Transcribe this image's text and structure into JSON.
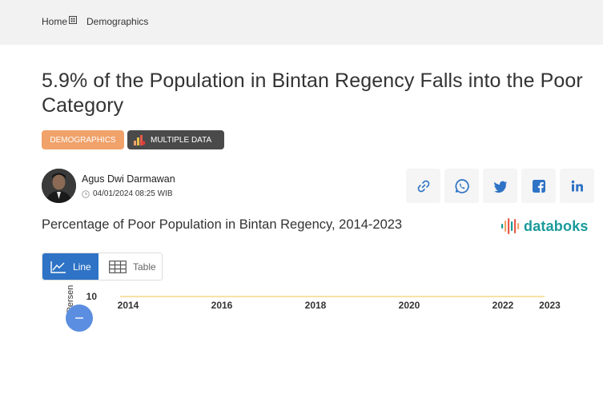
{
  "breadcrumb": {
    "home": "Home",
    "current": "Demographics"
  },
  "article": {
    "title": "5.9% of the Population in Bintan Regency Falls into the Poor Category",
    "tags": {
      "category": "DEMOGRAPHICS",
      "multiple": "MULTIPLE DATA"
    },
    "author": "Agus Dwi Darmawan",
    "date": "04/01/2024 08:25 WIB"
  },
  "share_icons": [
    "link-icon",
    "whatsapp-icon",
    "twitter-icon",
    "facebook-icon",
    "linkedin-icon"
  ],
  "chart_section": {
    "title": "Percentage of Poor Population in Bintan Regency, 2014-2023",
    "brand": "databoks",
    "toggle": {
      "line": "Line",
      "table": "Table"
    }
  },
  "colors": {
    "accent": "#2e73c5",
    "tag_category": "#f0a26a",
    "brand": "#1a9a9a",
    "series": "#f5d58a"
  },
  "chart_data": {
    "type": "line",
    "ylabel": "Persen",
    "x_ticks": [
      "2014",
      "2016",
      "2018",
      "2020",
      "2022",
      "2023"
    ],
    "y_ticks": [
      "10"
    ]
  }
}
